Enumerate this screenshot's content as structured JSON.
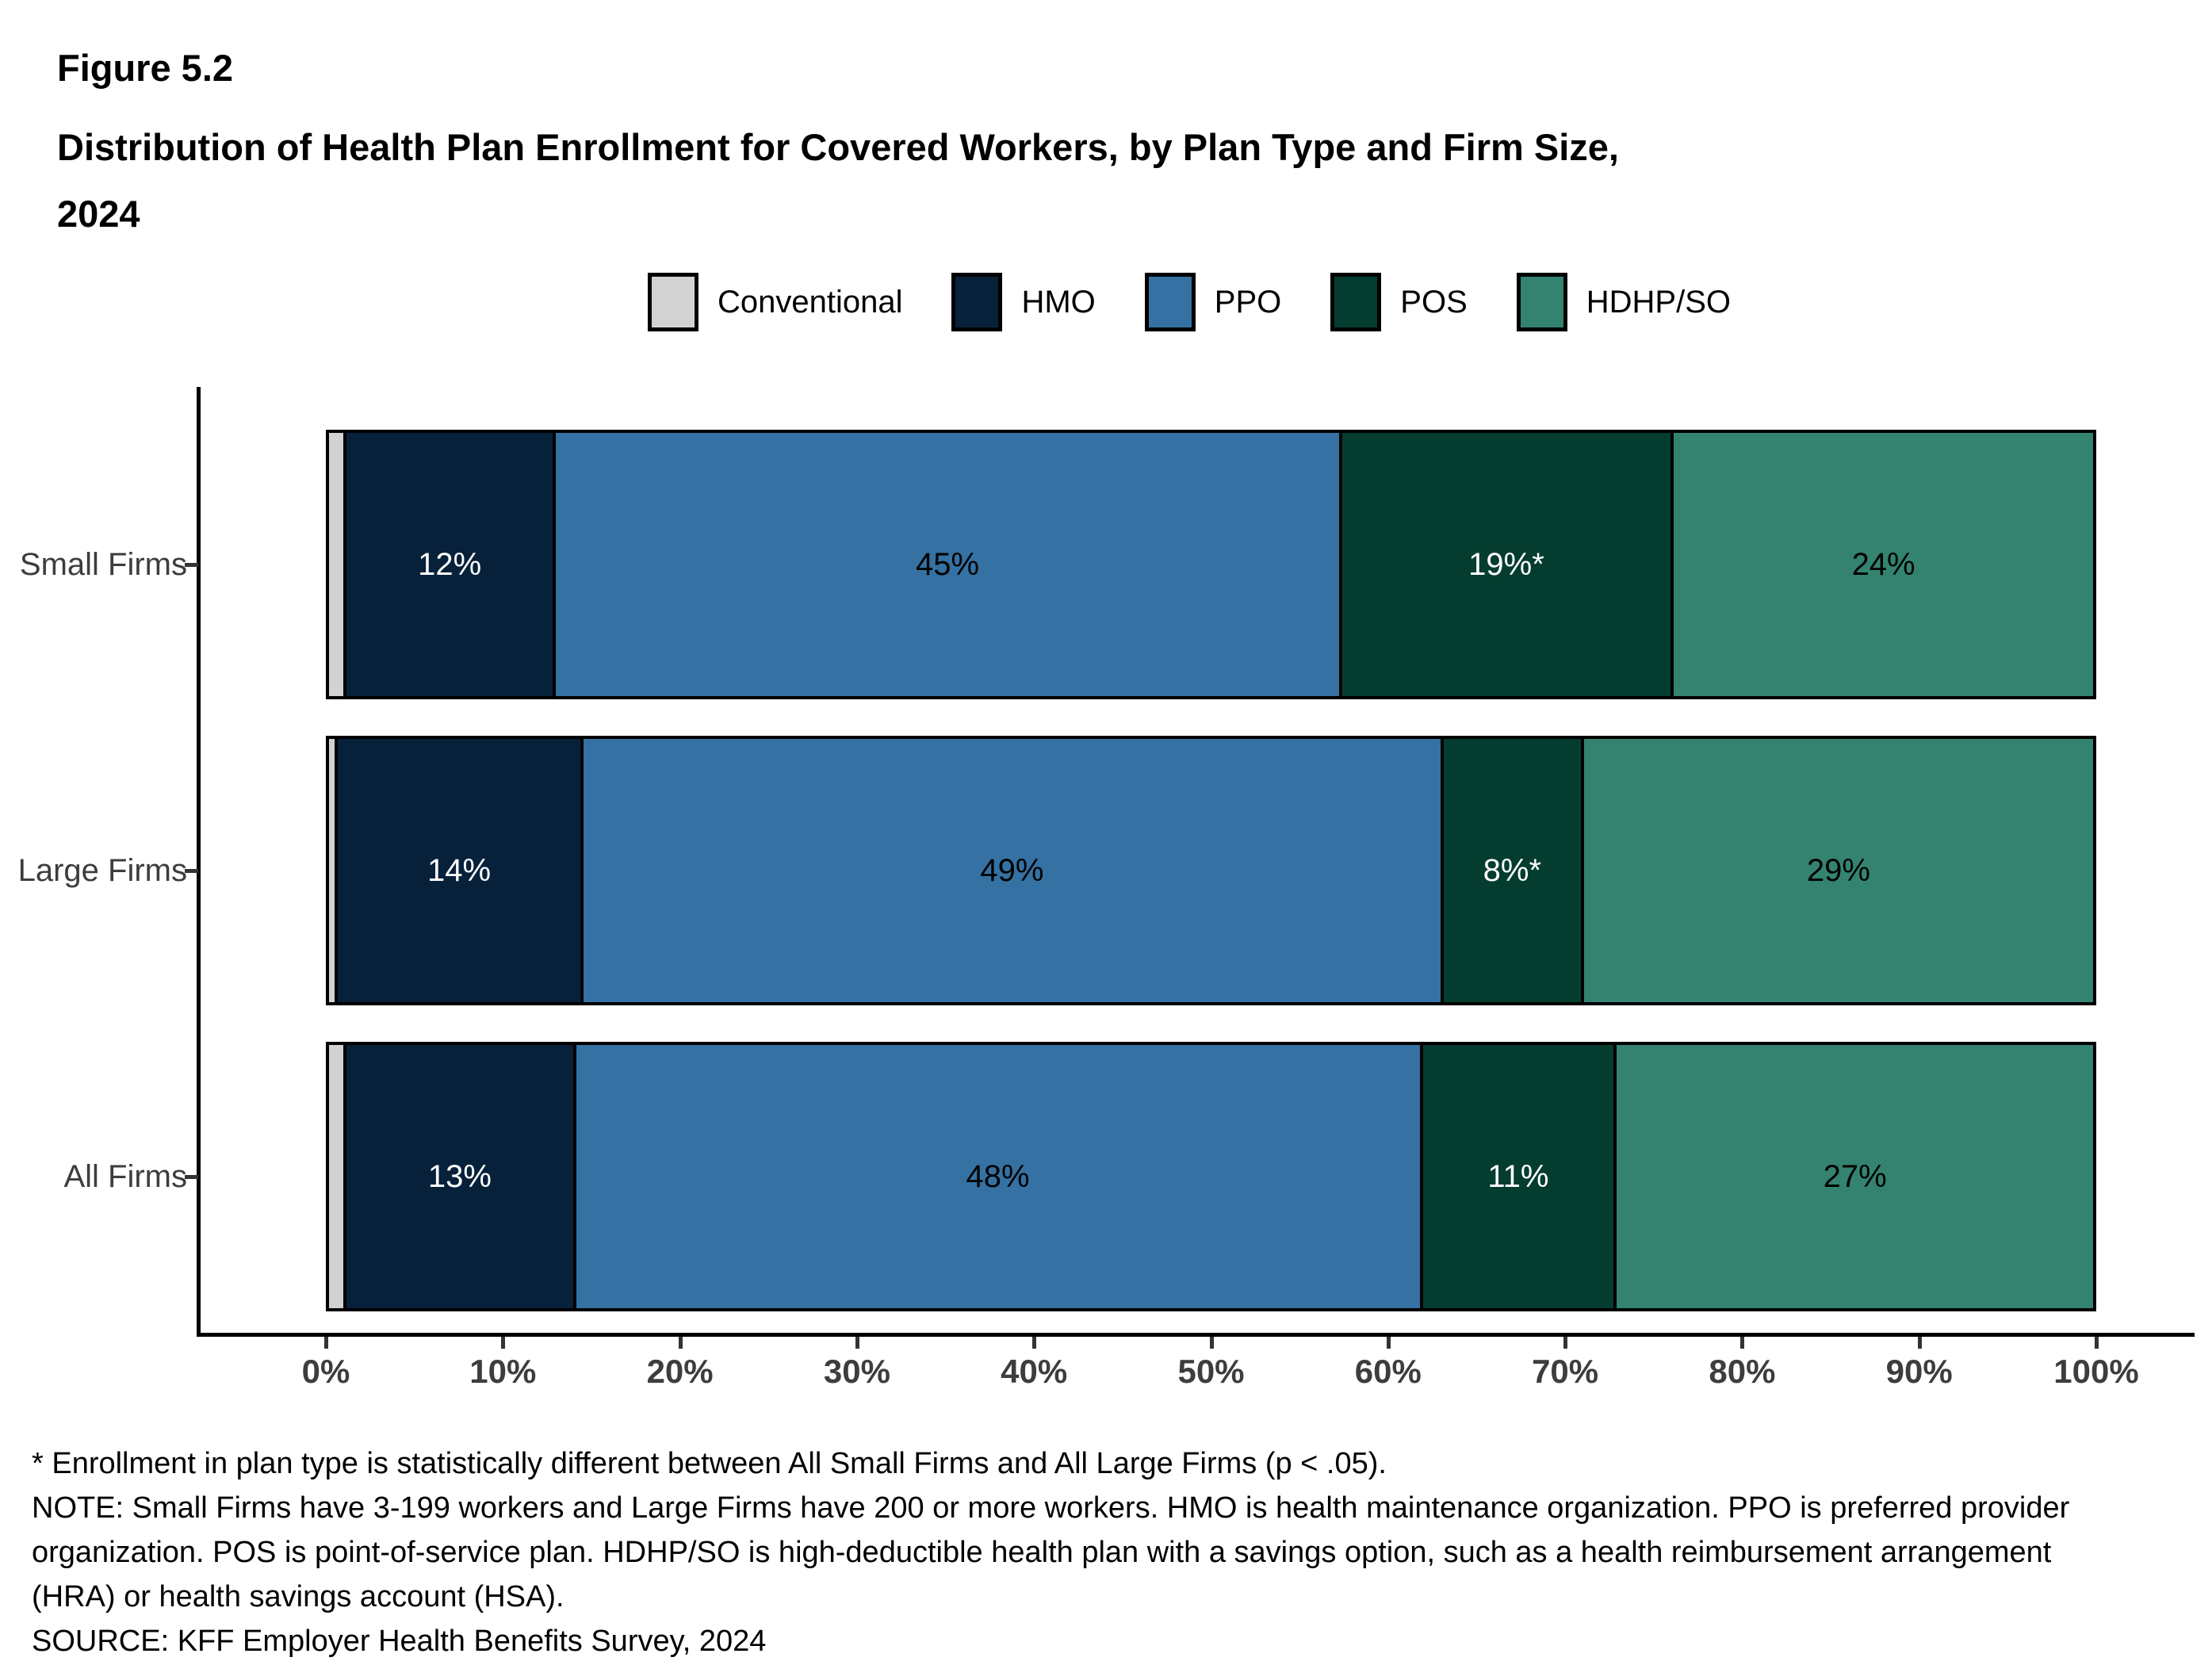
{
  "figure_label": "Figure 5.2",
  "title_lines": [
    "Distribution of Health Plan Enrollment for Covered Workers, by Plan Type and Firm Size,",
    "2024"
  ],
  "colors": {
    "conventional": "#d2d2d2",
    "hmo": "#07213a",
    "ppo": "#3571a2",
    "pos": "#043d2f",
    "hdhpso": "#348370",
    "axis_text": "#3d3d3d",
    "axis_line": "#000000"
  },
  "chart_data": {
    "type": "bar",
    "subtype": "horizontal-stacked-100pct",
    "title": "Distribution of Health Plan Enrollment for Covered Workers, by Plan Type and Firm Size, 2024",
    "categories": [
      "Small Firms",
      "Large Firms",
      "All Firms"
    ],
    "series": [
      {
        "name": "Conventional",
        "color": "#d2d2d2",
        "label_color": "#000000",
        "values": [
          1,
          0.5,
          1
        ],
        "labels": [
          "",
          "",
          ""
        ]
      },
      {
        "name": "HMO",
        "color": "#07213a",
        "label_color": "#ffffff",
        "values": [
          12,
          14,
          13
        ],
        "labels": [
          "12%",
          "14%",
          "13%"
        ]
      },
      {
        "name": "PPO",
        "color": "#3571a2",
        "label_color": "#000000",
        "values": [
          45,
          49,
          48
        ],
        "labels": [
          "45%",
          "49%",
          "48%"
        ]
      },
      {
        "name": "POS",
        "color": "#043d2f",
        "label_color": "#ffffff",
        "values": [
          19,
          8,
          11
        ],
        "labels": [
          "19%*",
          "8%*",
          "11%"
        ]
      },
      {
        "name": "HDHP/SO",
        "color": "#348370",
        "label_color": "#000000",
        "values": [
          24,
          29,
          27
        ],
        "labels": [
          "24%",
          "29%",
          "27%"
        ]
      }
    ],
    "x_ticks": [
      "0%",
      "10%",
      "20%",
      "30%",
      "40%",
      "50%",
      "60%",
      "70%",
      "80%",
      "90%",
      "100%"
    ],
    "xlim": [
      0,
      100
    ],
    "grid": false,
    "legend_position": "top-center"
  },
  "footnotes": [
    "* Enrollment in plan type is statistically different between All Small Firms and All Large Firms (p < .05).",
    "NOTE: Small Firms have 3-199 workers and Large Firms have 200 or more workers. HMO is health maintenance organization. PPO is preferred provider",
    "organization. POS is point-of-service plan. HDHP/SO is high-deductible health plan with a savings option, such as a health reimbursement arrangement",
    "(HRA) or health savings account (HSA).",
    "SOURCE: KFF Employer Health Benefits Survey, 2024"
  ]
}
